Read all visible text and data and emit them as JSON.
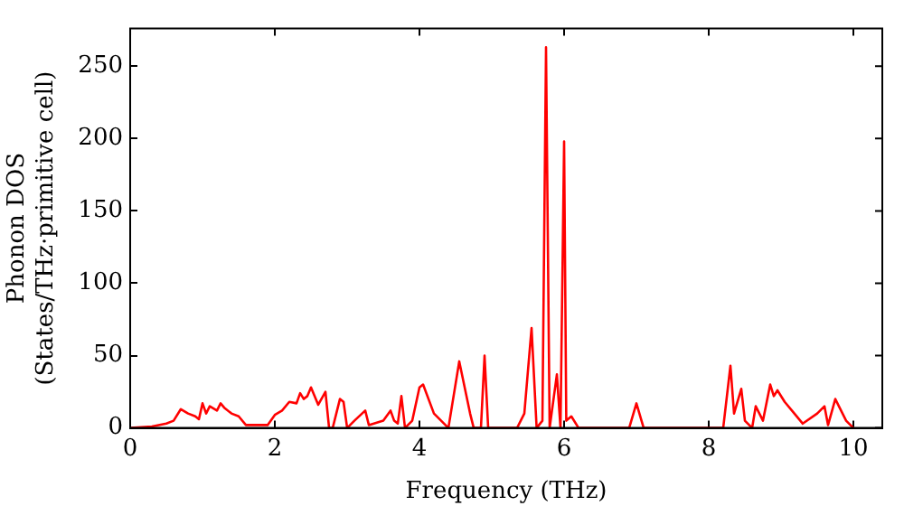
{
  "chart_data": {
    "type": "line",
    "xlabel": "Frequency (THz)",
    "ylabel": "Phonon DOS\n(States/THz·primitive cell)",
    "x": [
      0,
      0.3,
      0.5,
      0.6,
      0.7,
      0.8,
      0.9,
      0.95,
      1.0,
      1.05,
      1.1,
      1.2,
      1.25,
      1.3,
      1.4,
      1.5,
      1.6,
      1.7,
      1.9,
      2.0,
      2.1,
      2.2,
      2.3,
      2.35,
      2.4,
      2.45,
      2.5,
      2.6,
      2.7,
      2.75,
      2.8,
      2.9,
      2.95,
      3.0,
      3.1,
      3.25,
      3.3,
      3.5,
      3.6,
      3.65,
      3.7,
      3.75,
      3.8,
      3.9,
      4.0,
      4.05,
      4.2,
      4.4,
      4.55,
      4.7,
      4.75,
      4.85,
      4.9,
      4.95,
      5.35,
      5.45,
      5.55,
      5.62,
      5.7,
      5.75,
      5.8,
      5.9,
      5.95,
      6.0,
      6.03,
      6.1,
      6.2,
      6.9,
      7.0,
      7.1,
      8.2,
      8.3,
      8.35,
      8.45,
      8.5,
      8.6,
      8.65,
      8.75,
      8.85,
      8.9,
      8.95,
      9.05,
      9.15,
      9.3,
      9.5,
      9.6,
      9.65,
      9.75,
      9.9,
      10.0
    ],
    "series": [
      {
        "color": "#ff0000",
        "values": [
          0,
          1,
          3,
          5,
          13,
          10,
          8,
          6,
          17,
          10,
          15,
          12,
          17,
          14,
          10,
          8,
          2,
          2,
          2,
          9,
          12,
          18,
          17,
          24,
          20,
          22,
          28,
          16,
          25,
          0,
          0,
          20,
          18,
          0,
          5,
          12,
          2,
          5,
          12,
          5,
          3,
          22,
          0,
          5,
          28,
          30,
          10,
          0,
          46,
          10,
          0,
          0,
          50,
          0,
          0,
          10,
          69,
          0,
          5,
          263,
          0,
          37,
          0,
          198,
          5,
          8,
          0,
          0,
          17,
          0,
          0,
          43,
          10,
          27,
          5,
          0,
          15,
          5,
          30,
          22,
          26,
          18,
          12,
          3,
          10,
          15,
          2,
          20,
          5,
          0
        ]
      }
    ],
    "xlim": [
      0,
      10.4
    ],
    "ylim": [
      0,
      276
    ],
    "xticks": [
      0,
      2,
      4,
      6,
      8,
      10
    ],
    "yticks": [
      0,
      50,
      100,
      150,
      200,
      250
    ],
    "grid": false,
    "legend": false,
    "marker": "none",
    "line_style": "solid"
  }
}
